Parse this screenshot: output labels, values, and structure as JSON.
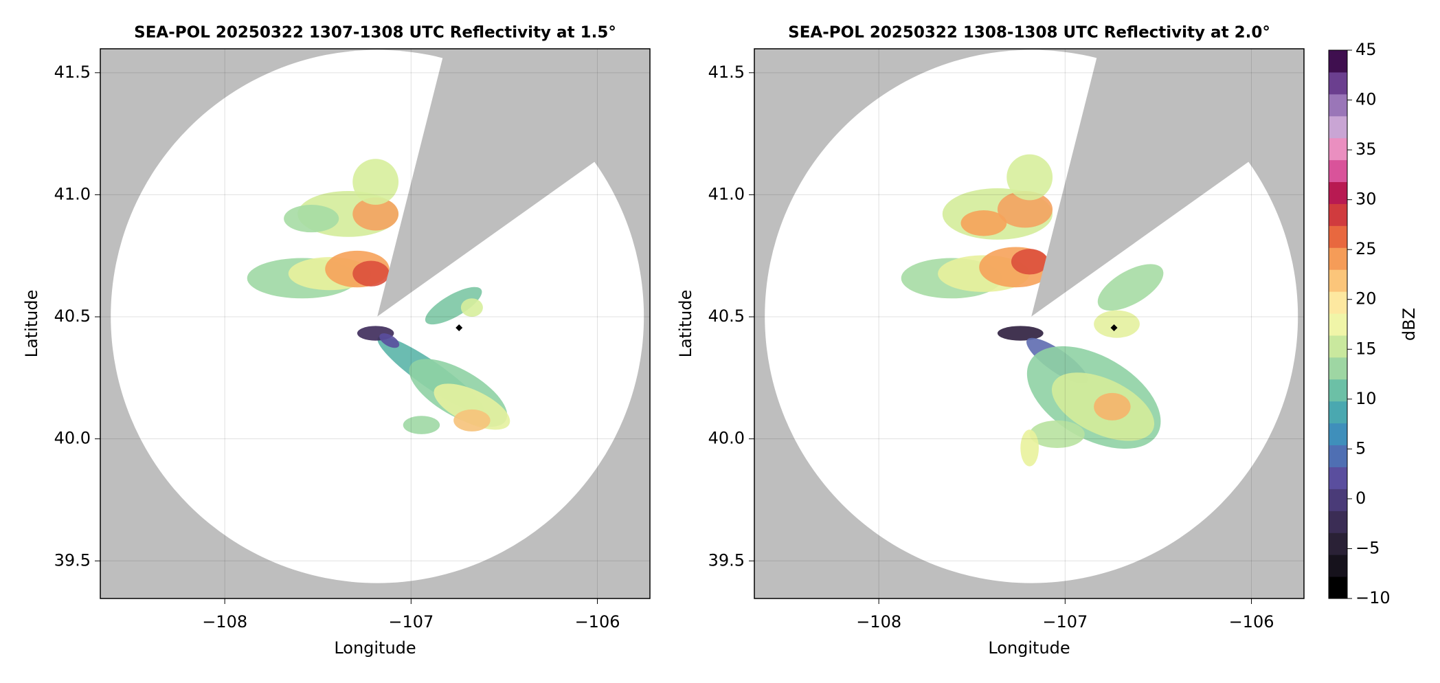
{
  "chart_data": [
    {
      "type": "radar",
      "title": "SEA-POL 20250322 1307-1308 UTC Reflectivity at 1.5°",
      "xlabel": "Longitude",
      "ylabel": "Latitude",
      "xlim": [
        -108.668,
        -105.718
      ],
      "ylim": [
        39.346,
        41.598
      ],
      "xticks": [
        {
          "value": -108,
          "label": "−108"
        },
        {
          "value": -107,
          "label": "−107"
        },
        {
          "value": -106,
          "label": "−106"
        }
      ],
      "yticks": [
        39.5,
        {
          "value": 40,
          "label": "40.0"
        },
        40.5,
        {
          "value": 41,
          "label": "41.0"
        },
        41.5
      ],
      "grid": true
    },
    {
      "type": "radar",
      "title": "SEA-POL 20250322 1308-1308 UTC Reflectivity at 2.0°",
      "xlabel": "Longitude",
      "ylabel": "Latitude",
      "xlim": [
        -108.668,
        -105.718
      ],
      "ylim": [
        39.346,
        41.598
      ],
      "xticks": [
        {
          "value": -108,
          "label": "−108"
        },
        {
          "value": -107,
          "label": "−107"
        },
        {
          "value": -106,
          "label": "−106"
        }
      ],
      "yticks": [
        39.5,
        {
          "value": 40,
          "label": "40.0"
        },
        40.5,
        {
          "value": 41,
          "label": "41.0"
        },
        41.5
      ],
      "grid": true,
      "colorbar": {
        "label": "dBZ",
        "lim": [
          -10,
          45
        ],
        "ticks": [
          {
            "value": -10,
            "label": "−10"
          },
          {
            "value": -5,
            "label": "−5"
          },
          0,
          5,
          10,
          15,
          20,
          25,
          30,
          35,
          40,
          45
        ],
        "colors": [
          "#000000",
          "#16121c",
          "#2a2136",
          "#3b2d55",
          "#4a3b78",
          "#5a4e9e",
          "#4f6fb3",
          "#3f8fbb",
          "#4aa8b0",
          "#6cc0a6",
          "#9ed6a3",
          "#c9e89e",
          "#f0f5a8",
          "#fde8a0",
          "#fbc57a",
          "#f59c58",
          "#e8683f",
          "#d03b3e",
          "#b81a52",
          "#d9539a",
          "#ea8fc0",
          "#c9a5d4",
          "#9a76b8",
          "#6b3f8f",
          "#3f0f4f"
        ]
      }
    }
  ]
}
